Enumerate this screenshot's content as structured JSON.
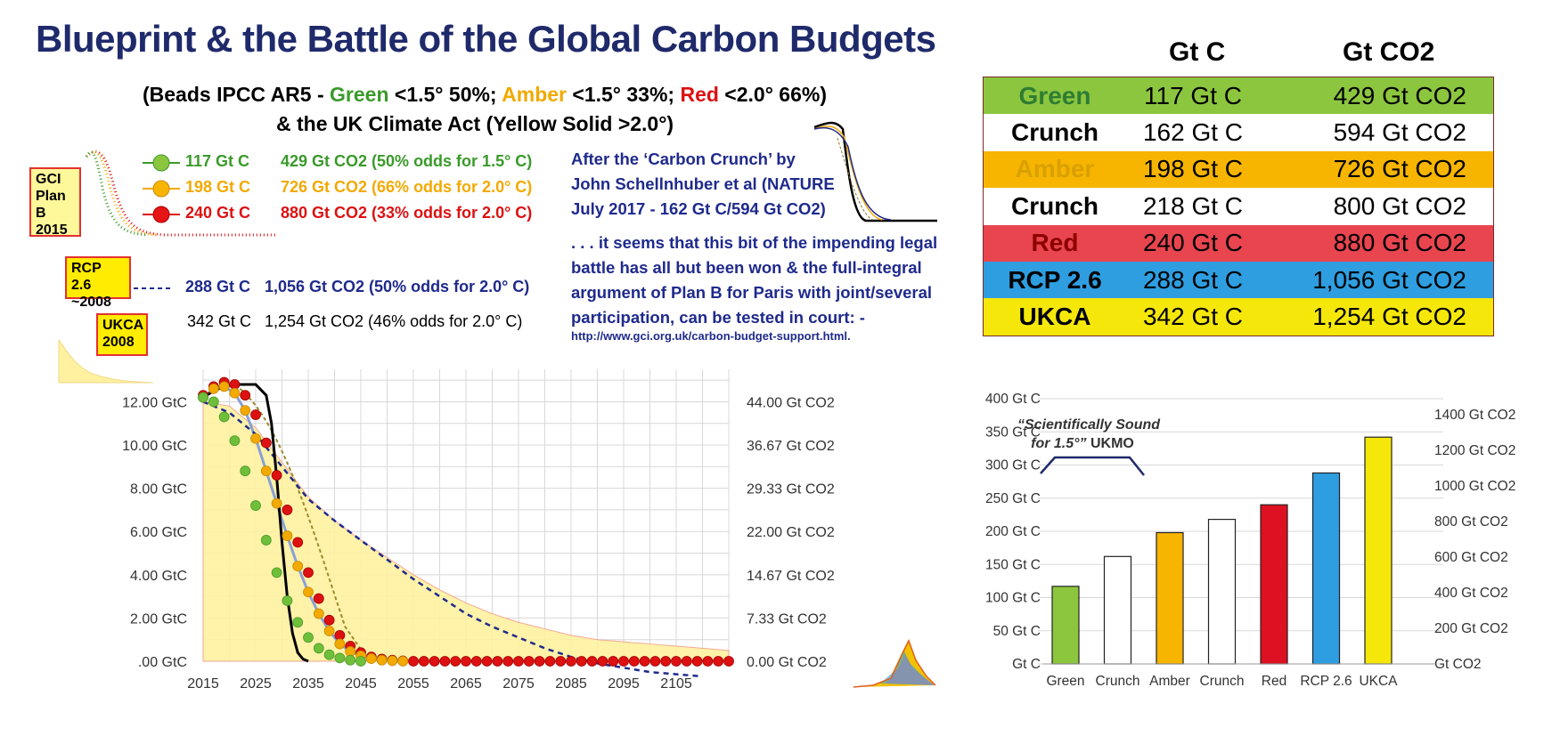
{
  "page": {
    "title": "Blueprint & the Battle of the Global Carbon Budgets",
    "subtitle_line1": {
      "p1": "(Beads IPCC AR5 - ",
      "green": "Green",
      "p2": " <1.5° 50%; ",
      "amber": "Amber",
      "p3": " <1.5° 33%; ",
      "red": "Red",
      "p4": " <2.0° 66%)"
    },
    "subtitle_line2": "& the UK Climate Act (Yellow Solid >2.0°)"
  },
  "tags": {
    "gci_line1": "GCI",
    "gci_line2": "Plan B",
    "gci_line3": "2015",
    "rcp_line1": "RCP 2.6",
    "rcp_line2": "~2008",
    "ukca_line1": "UKCA",
    "ukca_line2": "2008"
  },
  "legend": [
    {
      "gtc": "117 Gt C",
      "co2": "429 Gt CO2 (50% odds for 1.5° C)",
      "color": "#3a9a2a"
    },
    {
      "gtc": "198 Gt C",
      "co2": "726 Gt CO2 (66% odds for 2.0° C)",
      "color": "#f2a900"
    },
    {
      "gtc": "240 Gt C",
      "co2": "880 Gt CO2 (33% odds for 2.0° C)",
      "color": "#dd1111"
    },
    {
      "gtc": "288 Gt C",
      "co2": "1,056 Gt CO2 (50% odds for 2.0° C)",
      "color": "#1f2a8c"
    },
    {
      "gtc": "342 Gt C",
      "co2": "1,254 Gt CO2 (46% odds for 2.0° C)",
      "color": "#000000"
    }
  ],
  "notes": {
    "crunch_line1": "After the ‘Carbon Crunch’ by",
    "crunch_line2": "John Schellnhuber et al (NATURE",
    "crunch_line3": "July 2017 - 162 Gt C/594 Gt CO2)",
    "battle_line1": ". . . it seems that this bit of the impending legal",
    "battle_line2": "battle has all but been won & the full-integral",
    "battle_line3": "argument of Plan B for Paris with joint/several",
    "battle_line4": "participation, can be tested in court: -",
    "url": "http://www.gci.org.uk/carbon-budget-support.html."
  },
  "table": {
    "header_gtc": "Gt C",
    "header_co2": "Gt CO2",
    "rows": [
      {
        "name": "Green",
        "gtc": "117 Gt C",
        "co2": "429 Gt CO2",
        "bg": "#8cc63f",
        "fg": "#2e7d32"
      },
      {
        "name": "Crunch",
        "gtc": "162 Gt C",
        "co2": "594 Gt CO2",
        "bg": "#ffffff",
        "fg": "#000000"
      },
      {
        "name": "Amber",
        "gtc": "198 Gt C",
        "co2": "726 Gt CO2",
        "bg": "#f7b500",
        "fg": "#d9a000"
      },
      {
        "name": "Crunch",
        "gtc": "218 Gt C",
        "co2": "800 Gt CO2",
        "bg": "#ffffff",
        "fg": "#000000"
      },
      {
        "name": "Red",
        "gtc": "240 Gt C",
        "co2": "880 Gt CO2",
        "bg": "#e8454f",
        "fg": "#8b0000"
      },
      {
        "name": "RCP 2.6",
        "gtc": "288 Gt C",
        "co2": "1,056 Gt CO2",
        "bg": "#2e9ee0",
        "fg": "#000000"
      },
      {
        "name": "UKCA",
        "gtc": "342 Gt C",
        "co2": "1,254 Gt CO2",
        "bg": "#f5e70a",
        "fg": "#000000"
      }
    ]
  },
  "chart_data": [
    {
      "type": "line",
      "x_ticks": [
        "2015",
        "2025",
        "2035",
        "2045",
        "2055",
        "2065",
        "2075",
        "2085",
        "2095",
        "2105"
      ],
      "y_ticks_left": [
        ".00 GtC",
        "2.00 GtC",
        "4.00 GtC",
        "6.00 GtC",
        "8.00 GtC",
        "10.00 GtC",
        "12.00 GtC"
      ],
      "y_ticks_right": [
        "0.00 Gt CO2",
        "7.33 Gt CO2",
        "14.67 Gt CO2",
        "22.00 Gt CO2",
        "29.33 Gt CO2",
        "36.67 Gt CO2",
        "44.00 Gt CO2"
      ],
      "xlim": [
        2015,
        2115
      ],
      "ylim_left": [
        0,
        13.5
      ],
      "grid": true,
      "series": [
        {
          "name": "Green",
          "style": "beads",
          "color": "#6fbf3a",
          "x": [
            2015,
            2017,
            2019,
            2021,
            2023,
            2025,
            2027,
            2029,
            2031,
            2033,
            2035,
            2037,
            2039,
            2041,
            2043,
            2045
          ],
          "values": [
            12.2,
            12.0,
            11.3,
            10.2,
            8.8,
            7.2,
            5.6,
            4.1,
            2.8,
            1.8,
            1.1,
            0.6,
            0.3,
            0.15,
            0.05,
            0
          ]
        },
        {
          "name": "Amber",
          "style": "beads",
          "color": "#f2a900",
          "x": [
            2015,
            2017,
            2019,
            2021,
            2023,
            2025,
            2027,
            2029,
            2031,
            2033,
            2035,
            2037,
            2039,
            2041,
            2043,
            2045,
            2047,
            2049,
            2051,
            2053
          ],
          "values": [
            12.2,
            12.6,
            12.7,
            12.4,
            11.6,
            10.3,
            8.8,
            7.3,
            5.8,
            4.4,
            3.2,
            2.2,
            1.4,
            0.8,
            0.45,
            0.25,
            0.12,
            0.05,
            0.02,
            0
          ]
        },
        {
          "name": "Red",
          "style": "beads",
          "color": "#dd1111",
          "x": [
            2015,
            2017,
            2019,
            2021,
            2023,
            2025,
            2027,
            2029,
            2031,
            2033,
            2035,
            2037,
            2039,
            2041,
            2043,
            2045,
            2047,
            2049,
            2051,
            2053,
            2055,
            2057,
            2059,
            2061,
            2063,
            2065,
            2067,
            2069,
            2071,
            2073,
            2075,
            2077,
            2079,
            2081,
            2083,
            2085,
            2087,
            2089,
            2091,
            2093,
            2095,
            2097,
            2099,
            2101,
            2103,
            2105,
            2107,
            2109,
            2111,
            2113,
            2115
          ],
          "values": [
            12.3,
            12.7,
            12.9,
            12.8,
            12.3,
            11.4,
            10.1,
            8.6,
            7.0,
            5.5,
            4.1,
            2.9,
            1.9,
            1.2,
            0.7,
            0.4,
            0.2,
            0.1,
            0.05,
            0.02,
            0,
            0,
            0,
            0,
            0,
            0,
            0,
            0,
            0,
            0,
            0,
            0,
            0,
            0,
            0,
            0,
            0,
            0,
            0,
            0,
            0,
            0,
            0,
            0,
            0,
            0,
            0,
            0,
            0,
            0,
            0
          ]
        },
        {
          "name": "RCP 2.6",
          "style": "dashed",
          "color": "#1f2a8c",
          "x": [
            2015,
            2020,
            2025,
            2030,
            2035,
            2040,
            2045,
            2050,
            2055,
            2060,
            2065,
            2070,
            2075,
            2080,
            2085,
            2090,
            2095,
            2100,
            2105,
            2110
          ],
          "values": [
            12.0,
            11.5,
            10.5,
            9.0,
            7.5,
            6.5,
            5.6,
            4.7,
            3.8,
            3.0,
            2.2,
            1.6,
            1.1,
            0.6,
            0.2,
            -0.1,
            -0.3,
            -0.5,
            -0.6,
            -0.7
          ]
        },
        {
          "name": "UKCA",
          "style": "area",
          "color": "#fff1a0",
          "x": [
            2015,
            2020,
            2025,
            2030,
            2035,
            2040,
            2045,
            2050,
            2055,
            2060,
            2065,
            2070,
            2075,
            2080,
            2085,
            2090,
            2095,
            2100,
            2105,
            2110,
            2115
          ],
          "values": [
            12.0,
            11.8,
            10.8,
            9.2,
            7.6,
            6.5,
            5.6,
            4.8,
            4.0,
            3.3,
            2.7,
            2.2,
            1.8,
            1.5,
            1.2,
            1.0,
            0.9,
            0.8,
            0.7,
            0.6,
            0.5
          ]
        },
        {
          "name": "Crunch",
          "style": "solid",
          "color": "#000000",
          "x": [
            2015,
            2017,
            2019,
            2021,
            2023,
            2025,
            2027,
            2028,
            2029,
            2030,
            2031,
            2032,
            2033,
            2034,
            2035
          ],
          "values": [
            12.2,
            12.5,
            12.7,
            12.8,
            12.8,
            12.8,
            12.3,
            11.0,
            8.5,
            5.5,
            3.0,
            1.3,
            0.4,
            0.1,
            0
          ]
        }
      ]
    },
    {
      "type": "bar",
      "categories": [
        "Green",
        "Crunch",
        "Amber",
        "Crunch",
        "Red",
        "RCP 2.6",
        "UKCA"
      ],
      "values": [
        117,
        162,
        198,
        218,
        240,
        288,
        342
      ],
      "colors": [
        "#8cc63f",
        "#ffffff",
        "#f7b500",
        "#ffffff",
        "#dd1122",
        "#2e9ee0",
        "#f5e70a"
      ],
      "y_ticks_left": [
        "Gt C",
        "50 Gt C",
        "100 Gt C",
        "150 Gt C",
        "200 Gt C",
        "250 Gt C",
        "300 Gt C",
        "350 Gt C",
        "400 Gt C"
      ],
      "y_ticks_right": [
        "Gt CO2",
        "200 Gt CO2",
        "400 Gt CO2",
        "600 Gt CO2",
        "800 Gt CO2",
        "1000 Gt CO2",
        "1200 Gt CO2",
        "1400 Gt CO2"
      ],
      "ylim": [
        0,
        400
      ],
      "annotation_line1": "“Scientifically Sound",
      "annotation_line2": "for 1.5°”",
      "annotation_suffix": " UKMO",
      "grid": true
    }
  ]
}
